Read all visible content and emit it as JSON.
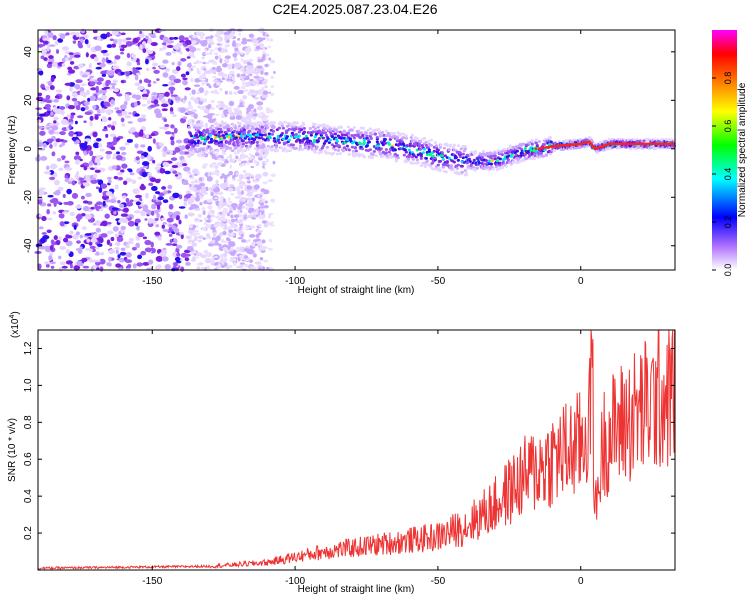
{
  "title": "C2E4.2025.087.23.04.E26",
  "chart_data": [
    {
      "type": "heatmap",
      "xlabel": "Height of straight line (km)",
      "ylabel": "Frequency (Hz)",
      "xlim": [
        -190,
        33
      ],
      "ylim": [
        -50,
        49
      ],
      "xticks": [
        -150,
        -100,
        -50,
        0
      ],
      "yticks": [
        -40,
        -20,
        0,
        20,
        40
      ],
      "colorbar": {
        "label": "Normalized spectral amplitude",
        "range": [
          0,
          1
        ],
        "ticks": [
          0.0,
          0.2,
          0.4,
          0.6,
          0.8
        ]
      },
      "ridge": {
        "x": [
          -137,
          -120,
          -100,
          -90,
          -80,
          -70,
          -60,
          -50,
          -40,
          -30,
          -25,
          -20,
          -10,
          0,
          3,
          5,
          10,
          20,
          33
        ],
        "y": [
          4,
          5,
          5,
          4,
          3,
          2,
          0,
          -3,
          -5,
          -5,
          -3,
          -1,
          1,
          2,
          3,
          0,
          2,
          2,
          2
        ]
      },
      "colors": [
        "#ffffff",
        "#8a2be2",
        "#0000ff",
        "#00ffff",
        "#00ff00",
        "#ffff00",
        "#ff7f00",
        "#ff0000",
        "#ff00ff"
      ]
    },
    {
      "type": "line",
      "xlabel": "Height of straight line (km)",
      "ylabel": "SNR (10 * v/v)",
      "multiplier": "(x10",
      "exponent": "4",
      "xlim": [
        -190,
        33
      ],
      "ylim": [
        0,
        1.3
      ],
      "xticks": [
        -150,
        -100,
        -50,
        0
      ],
      "yticks": [
        0.2,
        0.4,
        0.6,
        0.8,
        1.0,
        1.2
      ],
      "color": "#ee3333",
      "trend": {
        "x": [
          -190,
          -130,
          -110,
          -100,
          -90,
          -80,
          -70,
          -60,
          -50,
          -40,
          -30,
          -20,
          -10,
          0,
          3,
          4,
          5,
          8,
          15,
          25,
          33
        ],
        "y": [
          0.01,
          0.02,
          0.04,
          0.07,
          0.1,
          0.12,
          0.14,
          0.16,
          0.18,
          0.24,
          0.35,
          0.5,
          0.6,
          0.68,
          0.8,
          1.2,
          0.3,
          0.7,
          0.8,
          0.9,
          1.0
        ]
      }
    }
  ]
}
